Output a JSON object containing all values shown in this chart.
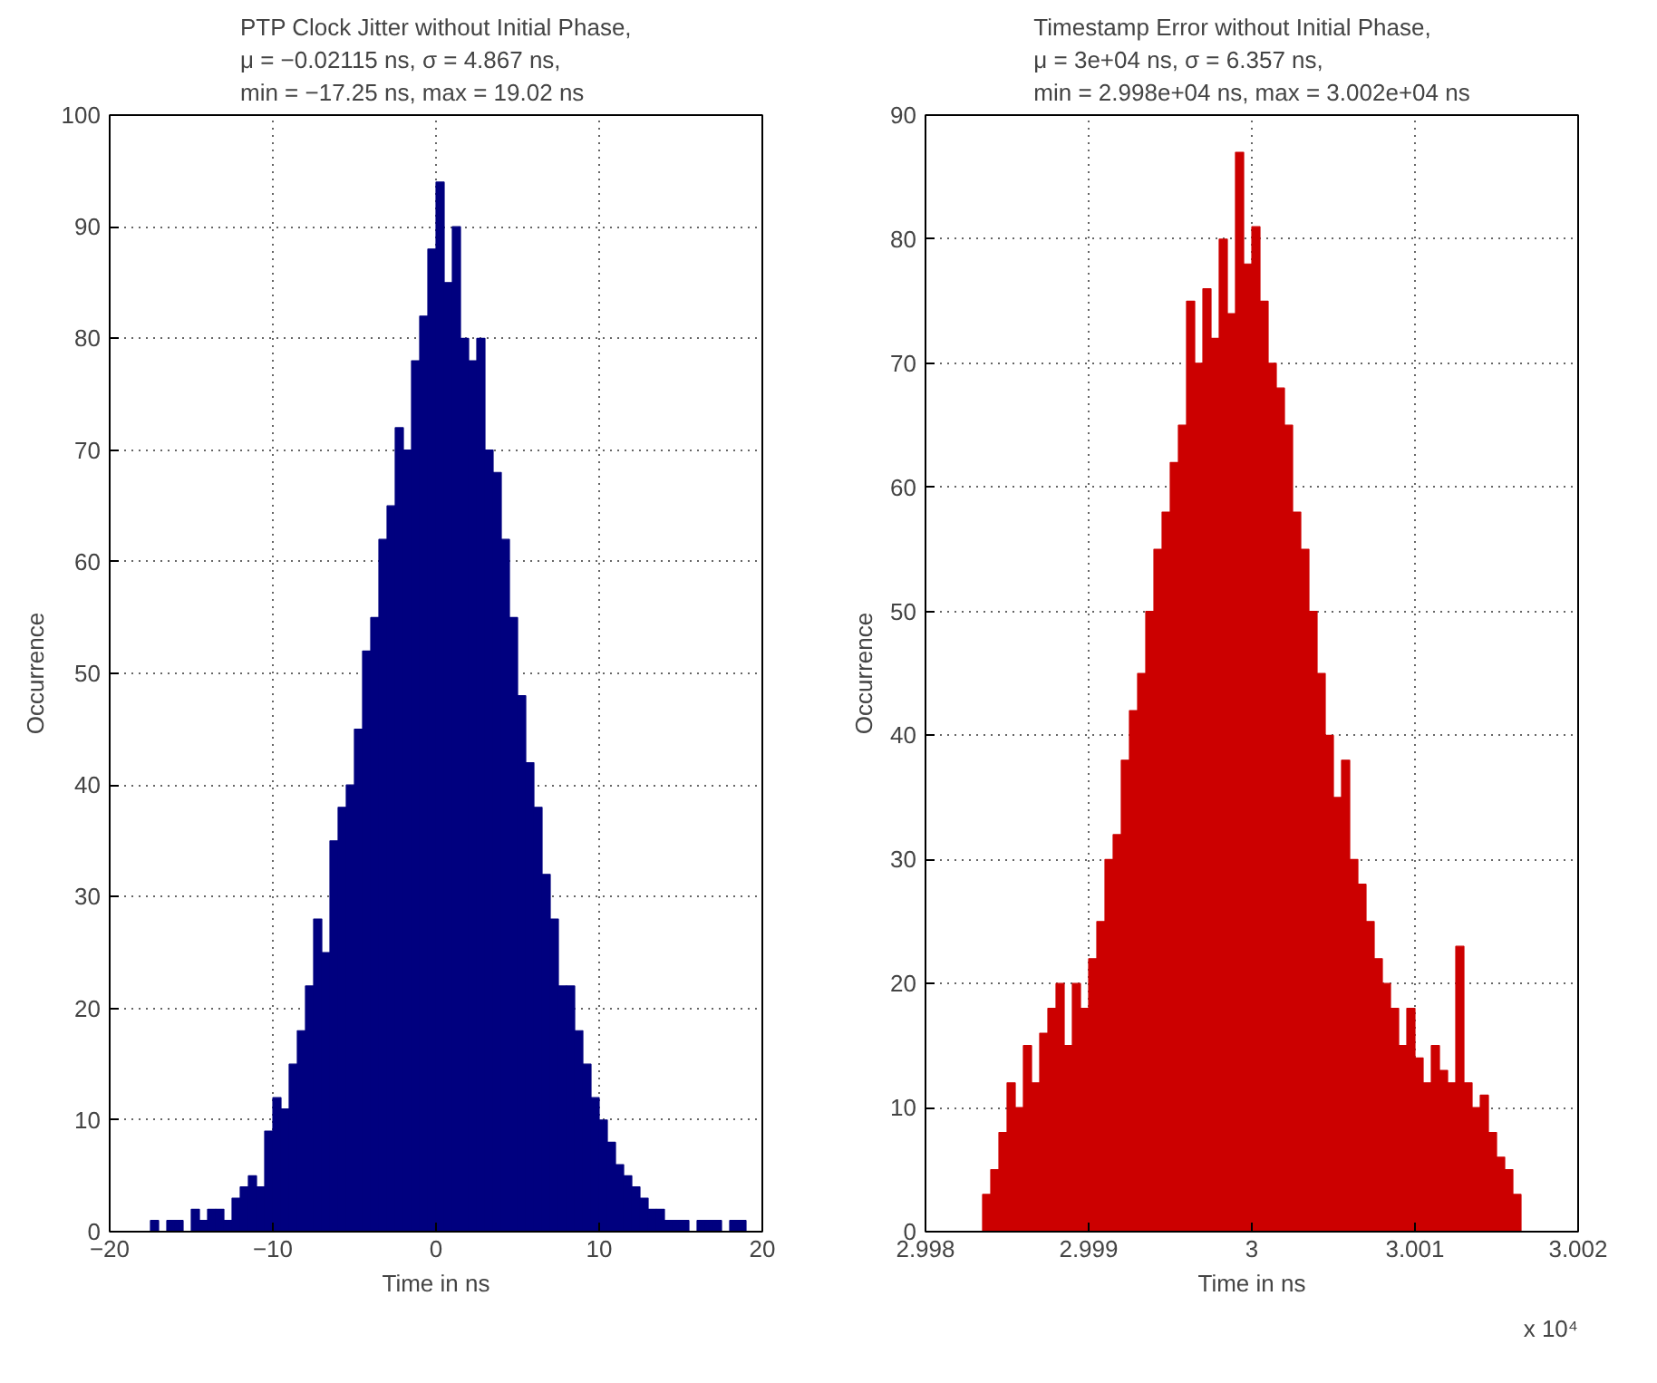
{
  "chart_data": [
    {
      "type": "histogram",
      "title": "PTP Clock Jitter without Initial Phase,\nμ = −0.02115 ns, σ = 4.867 ns,\nmin = −17.25 ns, max = 19.02 ns",
      "xlabel": "Time in ns",
      "ylabel": "Occurrence",
      "color": "#00007f",
      "bins": [
        -17.5,
        -17,
        -16.5,
        -16,
        -15.5,
        -15,
        -14.5,
        -14,
        -13.5,
        -13,
        -12.5,
        -12,
        -11.5,
        -11,
        -10.5,
        -10,
        -9.5,
        -9,
        -8.5,
        -8,
        -7.5,
        -7,
        -6.5,
        -6,
        -5.5,
        -5,
        -4.5,
        -4,
        -3.5,
        -3,
        -2.5,
        -2,
        -1.5,
        -1,
        -0.5,
        0,
        0.5,
        1,
        1.5,
        2,
        2.5,
        3,
        3.5,
        4,
        4.5,
        5,
        5.5,
        6,
        6.5,
        7,
        7.5,
        8,
        8.5,
        9,
        9.5,
        10,
        10.5,
        11,
        11.5,
        12,
        12.5,
        13,
        13.5,
        14,
        14.5,
        15,
        15.5,
        16,
        16.5,
        17,
        17.5,
        18,
        18.5,
        19
      ],
      "values": [
        1,
        0,
        1,
        1,
        0,
        2,
        1,
        2,
        2,
        1,
        3,
        4,
        5,
        4,
        9,
        12,
        11,
        15,
        18,
        22,
        28,
        25,
        35,
        38,
        40,
        45,
        52,
        55,
        62,
        65,
        72,
        70,
        78,
        82,
        88,
        94,
        85,
        90,
        80,
        78,
        80,
        70,
        68,
        62,
        55,
        48,
        42,
        38,
        32,
        28,
        22,
        22,
        18,
        15,
        12,
        10,
        8,
        6,
        5,
        4,
        3,
        2,
        2,
        1,
        1,
        1,
        0,
        1,
        1,
        1,
        0,
        1,
        1
      ],
      "xlim": [
        -20,
        20
      ],
      "xticks": [
        -20,
        -10,
        0,
        10,
        20
      ],
      "ylim": [
        0,
        100
      ],
      "yticks": [
        0,
        10,
        20,
        30,
        40,
        50,
        60,
        70,
        80,
        90,
        100
      ],
      "grid": true
    },
    {
      "type": "histogram",
      "title": "Timestamp Error without Initial Phase,\nμ = 3e+04 ns, σ = 6.357 ns,\nmin = 2.998e+04 ns, max = 3.002e+04 ns",
      "xlabel": "Time in ns",
      "ylabel": "Occurrence",
      "color": "#cc0000",
      "bins": [
        2.99835,
        2.9984,
        2.99845,
        2.9985,
        2.99855,
        2.9986,
        2.99865,
        2.9987,
        2.99875,
        2.9988,
        2.99885,
        2.9989,
        2.99895,
        2.999,
        2.99905,
        2.9991,
        2.99915,
        2.9992,
        2.99925,
        2.9993,
        2.99935,
        2.9994,
        2.99945,
        2.9995,
        2.99955,
        2.9996,
        2.99965,
        2.9997,
        2.99975,
        2.9998,
        2.99985,
        2.9999,
        2.99995,
        3,
        3.00005,
        3.0001,
        3.00015,
        3.0002,
        3.00025,
        3.0003,
        3.00035,
        3.0004,
        3.00045,
        3.0005,
        3.00055,
        3.0006,
        3.00065,
        3.0007,
        3.00075,
        3.0008,
        3.00085,
        3.0009,
        3.00095,
        3.001,
        3.00105,
        3.0011,
        3.00115,
        3.0012,
        3.00125,
        3.0013,
        3.00135,
        3.0014,
        3.00145,
        3.0015,
        3.00155,
        3.0016,
        3.00165
      ],
      "values": [
        3,
        5,
        8,
        12,
        10,
        15,
        12,
        16,
        18,
        20,
        15,
        20,
        18,
        22,
        25,
        30,
        32,
        38,
        42,
        45,
        50,
        55,
        58,
        62,
        65,
        75,
        70,
        76,
        72,
        80,
        74,
        87,
        78,
        81,
        75,
        70,
        68,
        65,
        58,
        55,
        50,
        45,
        40,
        35,
        38,
        30,
        28,
        25,
        22,
        20,
        18,
        15,
        18,
        14,
        12,
        15,
        13,
        12,
        23,
        12,
        10,
        11,
        8,
        6,
        5,
        3
      ],
      "xlim": [
        2.998,
        3.002
      ],
      "xticks": [
        2.998,
        2.999,
        3,
        3.001,
        3.002
      ],
      "ylim": [
        0,
        90
      ],
      "yticks": [
        0,
        10,
        20,
        30,
        40,
        50,
        60,
        70,
        80,
        90
      ],
      "grid": true,
      "annotations": [
        "x 10⁴"
      ]
    }
  ]
}
